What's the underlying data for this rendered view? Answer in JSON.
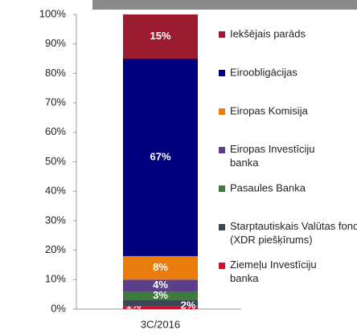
{
  "chart_data": {
    "type": "stacked_bar",
    "categories": [
      "3C/2016"
    ],
    "series": [
      {
        "name": "Ziemeļu Investīciju banka",
        "color": "#d0112b",
        "values": [
          1
        ],
        "value_labels": [
          "1%"
        ]
      },
      {
        "name": "Starptautiskais Valūtas fonds (XDR piešķīrums)",
        "color": "#3b4656",
        "values": [
          2
        ],
        "value_labels": [
          "2%"
        ]
      },
      {
        "name": "Pasaules Banka",
        "color": "#3f7a3a",
        "values": [
          3
        ],
        "value_labels": [
          "3%"
        ]
      },
      {
        "name": "Eiropas Investīciju banka",
        "color": "#5b3f8a",
        "values": [
          4
        ],
        "value_labels": [
          "4%"
        ]
      },
      {
        "name": "Eiropas Komisija",
        "color": "#e87c0c",
        "values": [
          8
        ],
        "value_labels": [
          "8%"
        ]
      },
      {
        "name": "Eiroobligācijas",
        "color": "#00007f",
        "values": [
          67
        ],
        "value_labels": [
          "67%"
        ]
      },
      {
        "name": "Iekšējais parāds",
        "color": "#9b1c31",
        "values": [
          15
        ],
        "value_labels": [
          "15%"
        ]
      }
    ],
    "ylim": [
      0,
      100
    ],
    "yticks": [
      {
        "value": 0,
        "label": "0%"
      },
      {
        "value": 10,
        "label": "10%"
      },
      {
        "value": 20,
        "label": "20%"
      },
      {
        "value": 30,
        "label": "30%"
      },
      {
        "value": 40,
        "label": "40%"
      },
      {
        "value": 50,
        "label": "50%"
      },
      {
        "value": 60,
        "label": "60%"
      },
      {
        "value": 70,
        "label": "70%"
      },
      {
        "value": 80,
        "label": "80%"
      },
      {
        "value": 90,
        "label": "90%"
      },
      {
        "value": 100,
        "label": "100%"
      }
    ],
    "legend": "right"
  }
}
